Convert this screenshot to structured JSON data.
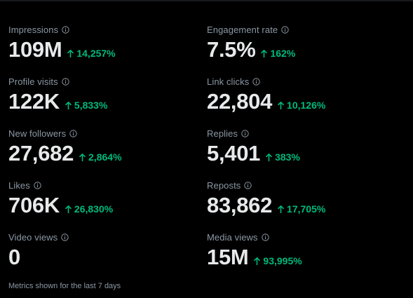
{
  "metrics": [
    {
      "id": "impressions",
      "label": "Impressions",
      "value": "109M",
      "change": "14,257%"
    },
    {
      "id": "engagement-rate",
      "label": "Engagement rate",
      "value": "7.5%",
      "change": "162%"
    },
    {
      "id": "profile-visits",
      "label": "Profile visits",
      "value": "122K",
      "change": "5,833%"
    },
    {
      "id": "link-clicks",
      "label": "Link clicks",
      "value": "22,804",
      "change": "10,126%"
    },
    {
      "id": "new-followers",
      "label": "New followers",
      "value": "27,682",
      "change": "2,864%"
    },
    {
      "id": "replies",
      "label": "Replies",
      "value": "5,401",
      "change": "383%"
    },
    {
      "id": "likes",
      "label": "Likes",
      "value": "706K",
      "change": "26,830%"
    },
    {
      "id": "reposts",
      "label": "Reposts",
      "value": "83,862",
      "change": "17,705%"
    },
    {
      "id": "video-views",
      "label": "Video views",
      "value": "0",
      "change": ""
    },
    {
      "id": "media-views",
      "label": "Media views",
      "value": "15M",
      "change": "93,995%"
    }
  ],
  "footnote": "Metrics shown for the last 7 days",
  "icons": {
    "info": "info-icon",
    "trend_up": "arrow-up-icon"
  },
  "colors": {
    "background": "#000000",
    "primary_text": "#e7e9ea",
    "secondary_text": "#8b98a5",
    "positive": "#00ba7c"
  }
}
